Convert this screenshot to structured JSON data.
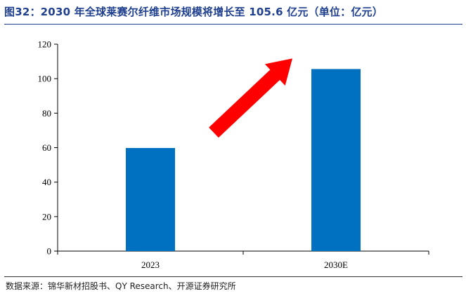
{
  "header": {
    "title": "图32：2030 年全球莱赛尔纤维市场规模将增长至 105.6 亿元（单位：亿元）"
  },
  "footer": {
    "source": "数据来源：锦华新材招股书、QY Research、开源证券研究所"
  },
  "chart_data": {
    "type": "bar",
    "categories": [
      "2023",
      "2030E"
    ],
    "values": [
      59.8,
      105.6
    ],
    "title": "",
    "xlabel": "",
    "ylabel": "",
    "ylim": [
      0,
      120
    ],
    "yticks": [
      0,
      20,
      40,
      60,
      80,
      100,
      120
    ],
    "bar_color": "#0070c0",
    "arrow_color": "#ff0000",
    "grid": false,
    "legend": "none"
  }
}
